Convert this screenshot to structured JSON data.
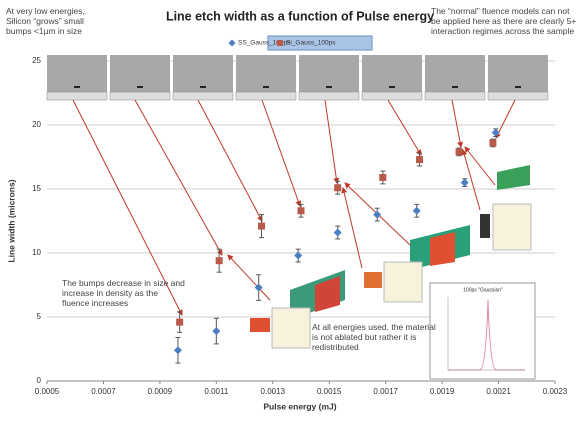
{
  "chart_data": {
    "type": "scatter",
    "title": "Line etch width as a function of Pulse energy",
    "x_label": "Pulse energy (mJ)",
    "y_label": "Line width (microns)",
    "xlim": [
      0.0005,
      0.0023
    ],
    "xticks": [
      0.0005,
      0.0007,
      0.0009,
      0.0011,
      0.0013,
      0.0015,
      0.0017,
      0.0019,
      0.0021,
      0.0023
    ],
    "ylim": [
      0,
      25
    ],
    "yticks": [
      0,
      5,
      10,
      15,
      20,
      25
    ],
    "grid": true,
    "legend": "top",
    "series": [
      {
        "name": "SS_Gauss_100ps",
        "color": "#4a7fc1",
        "marker": "diamond",
        "x": [
          0.000964,
          0.0011,
          0.00125,
          0.00139,
          0.00153,
          0.00167,
          0.00181,
          0.00198,
          0.00209
        ],
        "values": [
          2.4,
          3.9,
          7.3,
          9.8,
          11.6,
          13.0,
          13.3,
          15.5,
          19.4
        ],
        "errors": [
          1.0,
          1.0,
          1.0,
          0.5,
          0.5,
          0.5,
          0.5,
          0.3,
          0.3
        ]
      },
      {
        "name": "Si_Gauss_100ps",
        "color": "#b85a4a",
        "marker": "square",
        "x": [
          0.00097,
          0.00111,
          0.00126,
          0.0014,
          0.00153,
          0.00169,
          0.00182,
          0.00196,
          0.00208
        ],
        "values": [
          4.6,
          9.4,
          12.1,
          13.3,
          15.1,
          15.9,
          17.3,
          17.9,
          18.6
        ],
        "errors": [
          0.8,
          0.9,
          0.9,
          0.5,
          0.5,
          0.5,
          0.5,
          0.3,
          0.3
        ]
      }
    ],
    "annotations": [
      "At very low energies, Silicon “grows” small bumps <1µm in size",
      "The “normal” fluence models can not be applied here as there are clearly 5+ interaction regimes across the sample",
      "The bumps decrease in size and increase in density as the fluence increases",
      "At all energies used, the material is not ablated but rather it is redistributed"
    ],
    "inset_title": "100ps \"Gaussian\""
  }
}
